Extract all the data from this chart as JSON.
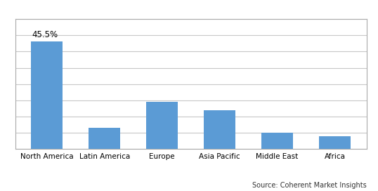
{
  "categories": [
    "North America",
    "Latin America",
    "Europe",
    "Asia Pacific",
    "Middle East",
    "Africa"
  ],
  "values": [
    45.5,
    9.0,
    20.0,
    16.5,
    7.0,
    5.5
  ],
  "bar_color": "#5B9BD5",
  "annotation_label": "45.5%",
  "annotation_index": 0,
  "ylim": [
    0,
    55
  ],
  "source_text": "Source: Coherent Market Insights",
  "bg_color": "#FFFFFF",
  "grid_color": "#C8C8C8",
  "bar_width": 0.55,
  "grid_steps": 8
}
